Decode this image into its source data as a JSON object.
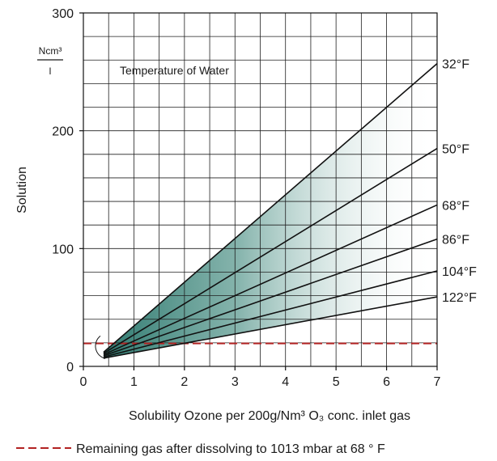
{
  "chart_data": {
    "type": "line",
    "title": "",
    "annotation": "Temperature of Water",
    "xlabel": "Solubility Ozone per 200g/Nm³ O₃ conc. inlet gas",
    "ylabel": "Solution",
    "y_unit_numerator": "Ncm³",
    "y_unit_denominator": "l",
    "xlim": [
      0,
      7
    ],
    "ylim": [
      0,
      300
    ],
    "xticks": [
      "0",
      "1",
      "2",
      "3",
      "4",
      "5",
      "6",
      "7"
    ],
    "yticks": [
      "0",
      "100",
      "200",
      "300"
    ],
    "x_grid_step": 0.5,
    "y_grid_step": 20,
    "grid": true,
    "origin": [
      0.4,
      8
    ],
    "series": [
      {
        "name": "32°F",
        "x": [
          0.4,
          7
        ],
        "y": [
          12,
          257
        ]
      },
      {
        "name": "50°F",
        "x": [
          0.4,
          7
        ],
        "y": [
          11,
          185
        ]
      },
      {
        "name": "68°F",
        "x": [
          0.4,
          7
        ],
        "y": [
          10,
          137
        ]
      },
      {
        "name": "86°F",
        "x": [
          0.4,
          7
        ],
        "y": [
          9,
          108
        ]
      },
      {
        "name": "104°F",
        "x": [
          0.4,
          7
        ],
        "y": [
          8,
          81
        ]
      },
      {
        "name": "122°F",
        "x": [
          0.4,
          7
        ],
        "y": [
          7,
          59
        ]
      }
    ],
    "reference_line": {
      "label": "Remaining gas after dissolving to 1013 mbar at 68 ° F",
      "y": 19.5,
      "color": "#b22222"
    },
    "colors": {
      "fill_dark": "#2f7a70",
      "fill_light": "#ffffff"
    }
  }
}
